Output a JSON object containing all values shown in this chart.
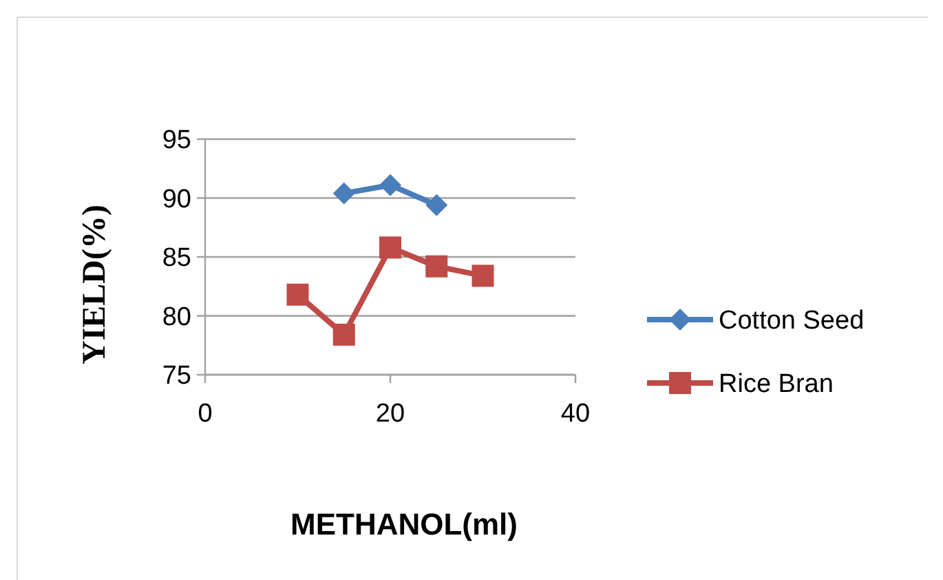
{
  "chart_data": {
    "type": "line",
    "xlabel": "METHANOL(ml)",
    "ylabel": "YIELD(%)",
    "xlim": [
      0,
      40
    ],
    "xticks": [
      0,
      20,
      40
    ],
    "ylim": [
      75,
      95
    ],
    "yticks": [
      75,
      80,
      85,
      90,
      95
    ],
    "grid": "y",
    "legend": "right",
    "series": [
      {
        "name": "Cotton Seed",
        "color": "#4a7ebb",
        "marker": "diamond",
        "x": [
          15,
          20,
          25
        ],
        "values": [
          90.4,
          91.1,
          89.4
        ]
      },
      {
        "name": "Rice Bran",
        "color": "#be4b48",
        "marker": "square",
        "x": [
          10,
          15,
          20,
          25,
          30
        ],
        "values": [
          81.8,
          78.4,
          85.8,
          84.2,
          83.4
        ]
      }
    ]
  }
}
